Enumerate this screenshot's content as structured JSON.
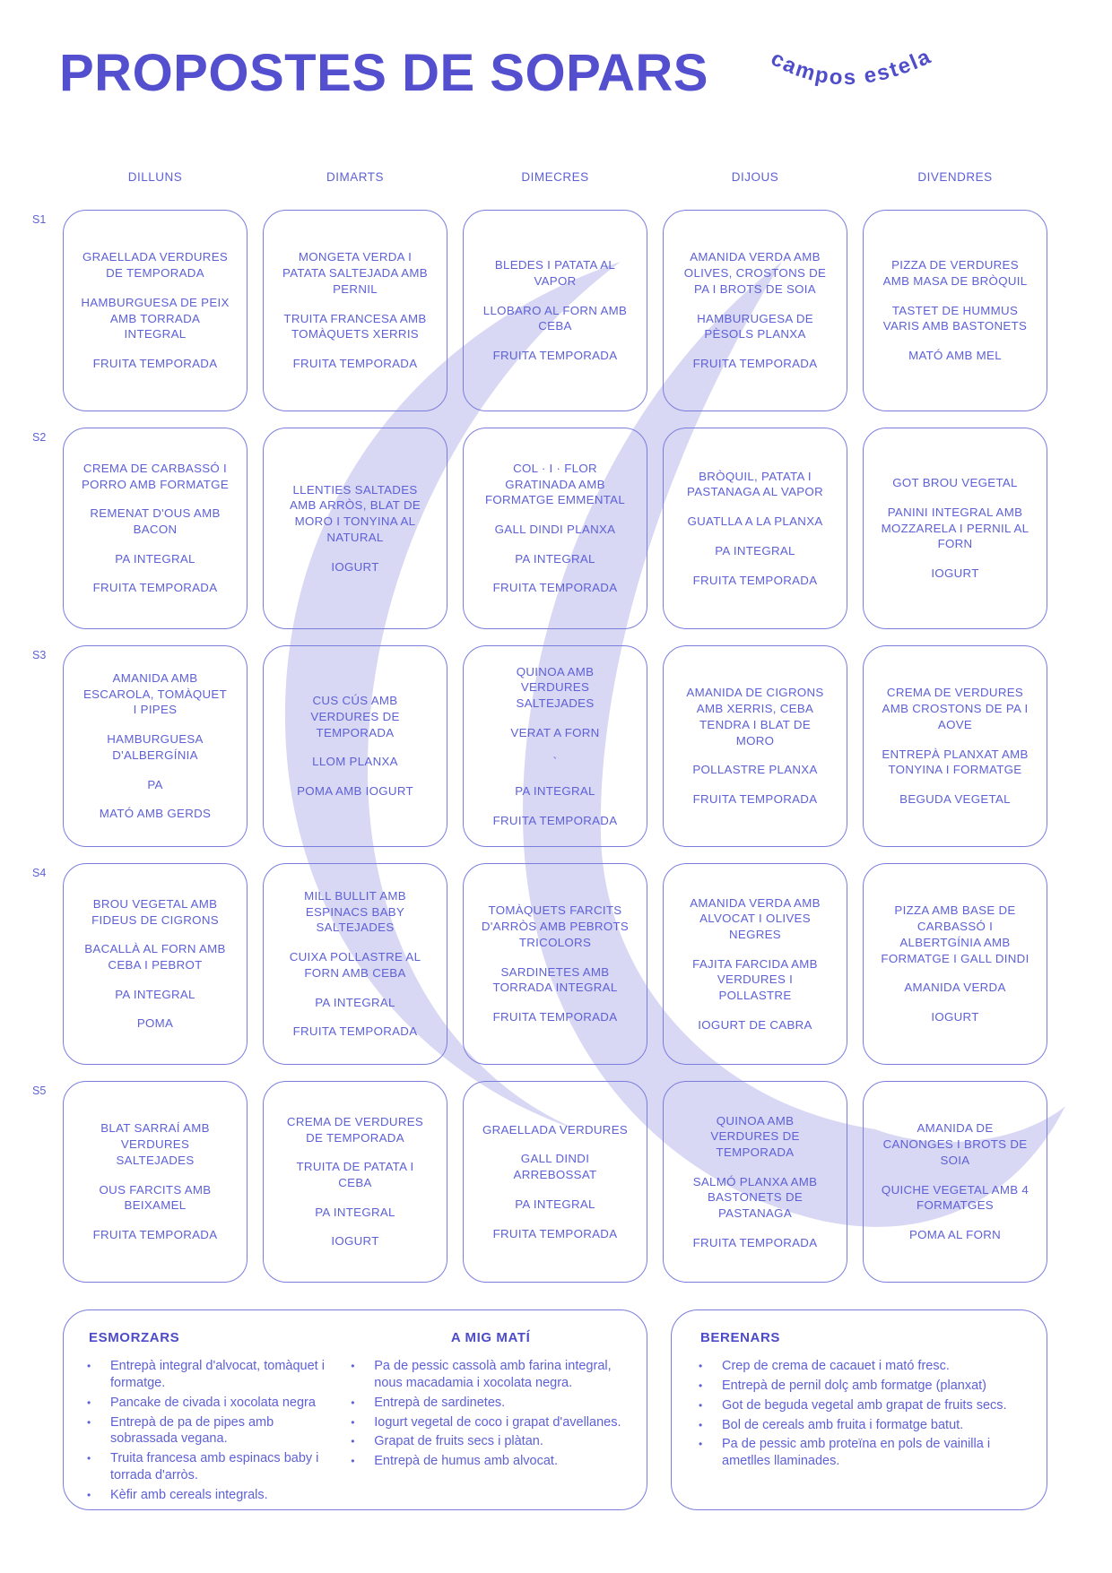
{
  "page": {
    "title": "PROPOSTES DE SOPARS",
    "brand": "campos estela"
  },
  "colors": {
    "accent": "#534fce",
    "text": "#5e61d6",
    "border": "#7b7ddd",
    "watermark": "#d8d7f4"
  },
  "grid": {
    "day_headers": [
      "DILLUNS",
      "DIMARTS",
      "DIMECRES",
      "DIJOUS",
      "DIVENDRES"
    ],
    "week_labels": [
      "S1",
      "S2",
      "S3",
      "S4",
      "S5"
    ],
    "weeks": [
      [
        [
          "GRAELLADA VERDURES DE TEMPORADA",
          "HAMBURGUESA DE PEIX AMB TORRADA INTEGRAL",
          "FRUITA TEMPORADA"
        ],
        [
          "MONGETA VERDA I PATATA SALTEJADA AMB PERNIL",
          "TRUITA FRANCESA AMB TOMÀQUETS XERRIS",
          "FRUITA TEMPORADA"
        ],
        [
          "BLEDES I PATATA AL VAPOR",
          "LLOBARO AL FORN AMB CEBA",
          "FRUITA TEMPORADA"
        ],
        [
          "AMANIDA VERDA AMB OLIVES, CROSTONS DE PA I BROTS DE SOIA",
          "HAMBURUGESA DE PÈSOLS PLANXA",
          "FRUITA TEMPORADA"
        ],
        [
          "PIZZA DE VERDURES AMB MASA DE BRÒQUIL",
          "TASTET DE HUMMUS VARIS AMB BASTONETS",
          "MATÓ AMB MEL"
        ]
      ],
      [
        [
          "CREMA DE CARBASSÓ I PORRO AMB FORMATGE",
          "REMENAT D'OUS AMB BACON",
          "PA INTEGRAL",
          "FRUITA TEMPORADA"
        ],
        [
          "LLENTIES SALTADES AMB ARRÒS, BLAT DE MORO I TONYINA AL NATURAL",
          "IOGURT"
        ],
        [
          "COL · I · FLOR GRATINADA AMB FORMATGE EMMENTAL",
          "GALL DINDI PLANXA",
          "PA INTEGRAL",
          "FRUITA TEMPORADA"
        ],
        [
          "BRÒQUIL, PATATA I PASTANAGA AL VAPOR",
          "GUATLLA A LA PLANXA",
          "PA INTEGRAL",
          "FRUITA TEMPORADA"
        ],
        [
          "GOT BROU VEGETAL",
          "PANINI INTEGRAL AMB MOZZARELA I PERNIL AL FORN",
          "IOGURT"
        ]
      ],
      [
        [
          "AMANIDA AMB ESCAROLA, TOMÀQUET I PIPES",
          "HAMBURGUESA D'ALBERGÍNIA",
          "PA",
          "MATÓ AMB GERDS"
        ],
        [
          "CUS CÚS AMB VERDURES DE TEMPORADA",
          "LLOM PLANXA",
          "POMA AMB IOGURT"
        ],
        [
          "QUINOA AMB VERDURES SALTEJADES",
          "VERAT A FORN",
          "`",
          "PA INTEGRAL",
          "FRUITA TEMPORADA"
        ],
        [
          "AMANIDA DE CIGRONS AMB XERRIS, CEBA TENDRA I BLAT DE MORO",
          "POLLASTRE PLANXA",
          "FRUITA TEMPORADA"
        ],
        [
          "CREMA DE VERDURES AMB CROSTONS DE PA I AOVE",
          "ENTREPÀ PLANXAT AMB TONYINA I FORMATGE",
          "BEGUDA VEGETAL"
        ]
      ],
      [
        [
          "BROU VEGETAL AMB FIDEUS DE CIGRONS",
          "BACALLÀ AL FORN AMB CEBA I PEBROT",
          "PA INTEGRAL",
          "POMA"
        ],
        [
          "MILL BULLIT AMB ESPINACS BABY SALTEJADES",
          "CUIXA POLLASTRE AL FORN AMB CEBA",
          "PA INTEGRAL",
          "FRUITA TEMPORADA"
        ],
        [
          "TOMÀQUETS FARCITS D'ARRÒS AMB PEBROTS TRICOLORS",
          "SARDINETES AMB TORRADA INTEGRAL",
          "FRUITA TEMPORADA"
        ],
        [
          "AMANIDA VERDA AMB ALVOCAT I OLIVES NEGRES",
          "FAJITA FARCIDA AMB VERDURES I POLLASTRE",
          "IOGURT DE CABRA"
        ],
        [
          "PIZZA AMB BASE DE CARBASSÓ I ALBERTGÍNIA AMB FORMATGE I GALL DINDI",
          "AMANIDA VERDA",
          "IOGURT"
        ]
      ],
      [
        [
          "BLAT SARRAÍ AMB VERDURES SALTEJADES",
          "OUS FARCITS AMB BEIXAMEL",
          "FRUITA TEMPORADA"
        ],
        [
          "CREMA DE VERDURES DE TEMPORADA",
          "TRUITA DE PATATA I CEBA",
          "PA INTEGRAL",
          "IOGURT"
        ],
        [
          "GRAELLADA VERDURES",
          "GALL DINDI ARREBOSSAT",
          "PA INTEGRAL",
          "FRUITA TEMPORADA"
        ],
        [
          "QUINOA AMB VERDURES DE TEMPORADA",
          "SALMÓ PLANXA AMB BASTONETS DE PASTANAGA",
          "FRUITA TEMPORADA"
        ],
        [
          "AMANIDA DE CANONGES I BROTS DE SOIA",
          "QUICHE VEGETAL AMB 4 FORMATGES",
          "POMA AL FORN"
        ]
      ]
    ]
  },
  "sections": {
    "esmorzars": {
      "title": "ESMORZARS",
      "items": [
        "Entrepà integral d'alvocat, tomàquet i formatge.",
        "Pancake de civada i xocolata negra",
        "Entrepà de pa de pipes amb sobrassada vegana.",
        "Truita francesa amb espinacs baby i torrada d'arròs.",
        "Kèfir amb cereals integrals."
      ]
    },
    "mig_mati": {
      "title": "A MIG MATÍ",
      "items": [
        "Pa de pessic cassolà amb farina integral, nous macadamia i xocolata negra.",
        "Entrepà de sardinetes.",
        "Iogurt vegetal de coco i grapat d'avellanes.",
        "Grapat de fruits secs i plàtan.",
        "Entrepà de humus amb alvocat."
      ]
    },
    "berenars": {
      "title": "BERENARS",
      "items": [
        "Crep de crema de cacauet i mató fresc.",
        "Entrepà de pernil dolç amb formatge (planxat)",
        "Got de beguda vegetal amb grapat de fruits secs.",
        "Bol de cereals amb fruita i formatge batut.",
        "Pa de pessic amb proteïna en pols de vainilla i ametlles llaminades."
      ]
    }
  }
}
